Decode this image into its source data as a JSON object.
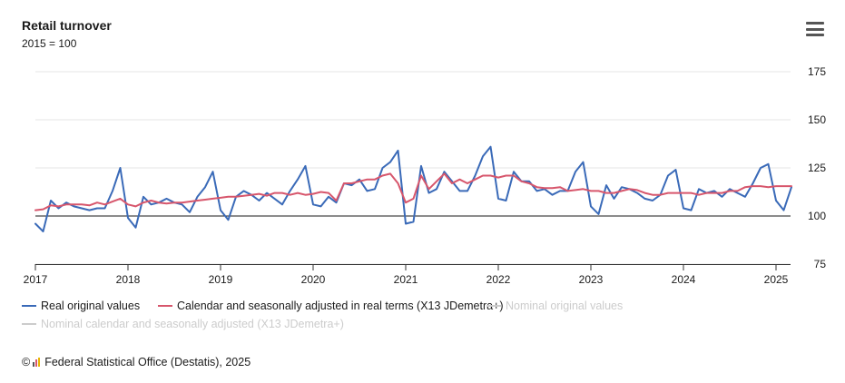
{
  "chart_data": {
    "type": "line",
    "title": "Retail turnover",
    "subtitle": "2015 = 100",
    "x_start": "2017-01",
    "x_tick_labels": [
      "2017",
      "2018",
      "2019",
      "2020",
      "2021",
      "2022",
      "2023",
      "2024",
      "2025"
    ],
    "y_tick_labels": [
      "75",
      "100",
      "125",
      "150",
      "175"
    ],
    "ylim": [
      75,
      175
    ],
    "reference_line": 100,
    "grid": true,
    "legend_position": "bottom-left",
    "series": [
      {
        "name": "Real original values",
        "color": "#3a6ab8",
        "visible": true,
        "values": [
          96,
          92,
          108,
          104,
          107,
          105,
          104,
          103,
          104,
          104,
          113,
          125,
          99,
          94,
          110,
          106,
          107,
          109,
          107,
          106,
          102,
          110,
          115,
          123,
          103,
          98,
          110,
          113,
          111,
          108,
          112,
          109,
          106,
          113,
          119,
          126,
          106,
          105,
          110,
          107,
          117,
          116,
          119,
          113,
          114,
          125,
          128,
          134,
          96,
          97,
          126,
          112,
          114,
          123,
          118,
          113,
          113,
          121,
          131,
          136,
          109,
          108,
          123,
          118,
          118,
          113,
          114,
          111,
          113,
          113,
          123,
          128,
          105,
          101,
          116,
          109,
          115,
          114,
          112,
          109,
          108,
          111,
          121,
          124,
          104,
          103,
          114,
          112,
          113,
          110,
          114,
          112,
          110,
          117,
          125,
          127,
          108,
          103,
          115
        ]
      },
      {
        "name": "Calendar and seasonally adjusted in real terms (X13 JDemetra+)",
        "color": "#d7566c",
        "visible": true,
        "values": [
          103,
          103.5,
          105.5,
          105,
          106,
          106,
          106,
          105.5,
          107,
          106,
          107.5,
          109,
          106,
          105,
          107,
          108,
          107,
          106.5,
          107,
          107,
          107.5,
          108,
          108.5,
          109,
          109.5,
          110,
          110,
          110.5,
          111,
          111.5,
          110.5,
          112,
          112,
          111,
          112,
          111,
          111.5,
          112.5,
          112,
          108,
          117,
          117,
          118,
          119,
          119,
          121,
          122,
          117,
          107,
          109,
          121,
          114,
          118,
          122,
          117,
          119,
          117,
          119,
          121,
          121,
          120,
          121,
          121,
          118,
          117,
          115,
          114.5,
          114.5,
          115,
          113,
          113.5,
          114,
          113,
          113,
          112,
          112,
          113,
          114,
          113.5,
          112,
          111,
          111,
          112,
          112,
          112,
          112,
          111,
          112,
          112,
          112,
          113,
          113,
          115,
          115.5,
          115.5,
          115,
          115.5,
          115.5,
          115.5
        ]
      },
      {
        "name": "Nominal original values",
        "color": "#cccccc",
        "visible": false,
        "values": []
      },
      {
        "name": "Nominal calendar and seasonally adjusted (X13 JDemetra+)",
        "color": "#cccccc",
        "visible": false,
        "values": []
      }
    ]
  },
  "menu": {
    "icon": "hamburger-menu-icon"
  },
  "credits": {
    "copyright": "©",
    "logo": "destatis-logo-icon",
    "text": "Federal Statistical Office (Destatis), 2025"
  }
}
